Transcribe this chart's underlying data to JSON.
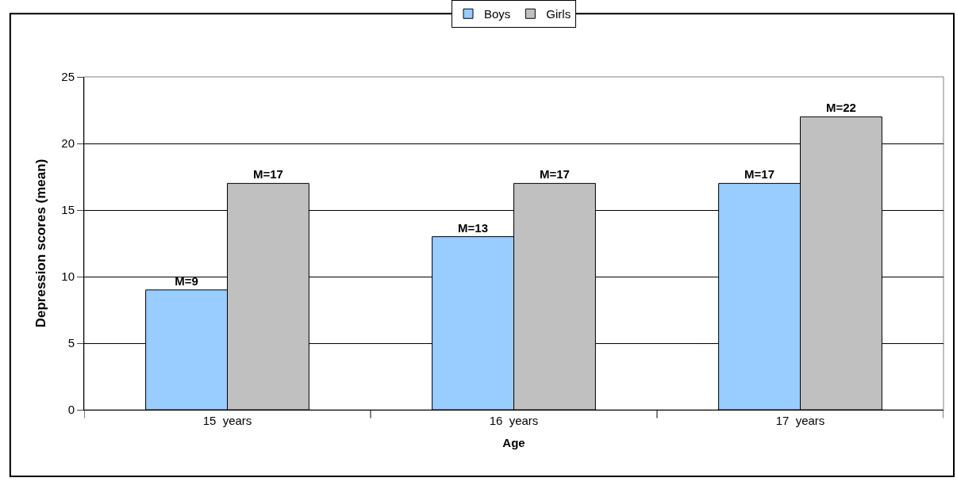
{
  "chart_data": {
    "type": "bar",
    "xlabel": "Age",
    "ylabel": "Depression scores (mean)",
    "categories": [
      "15  years",
      "16  years",
      "17  years"
    ],
    "series": [
      {
        "name": "Boys",
        "color": "#99ccff",
        "values": [
          9,
          13,
          17
        ],
        "value_labels": [
          "M=9",
          "M=13",
          "M=17"
        ]
      },
      {
        "name": "Girls",
        "color": "#c0c0c0",
        "values": [
          17,
          17,
          22
        ],
        "value_labels": [
          "M=17",
          "M=17",
          "M=22"
        ]
      }
    ],
    "ylim": [
      0,
      25
    ],
    "yticks": [
      0,
      5,
      10,
      15,
      20,
      25
    ],
    "grid": "y",
    "legend": "top"
  }
}
